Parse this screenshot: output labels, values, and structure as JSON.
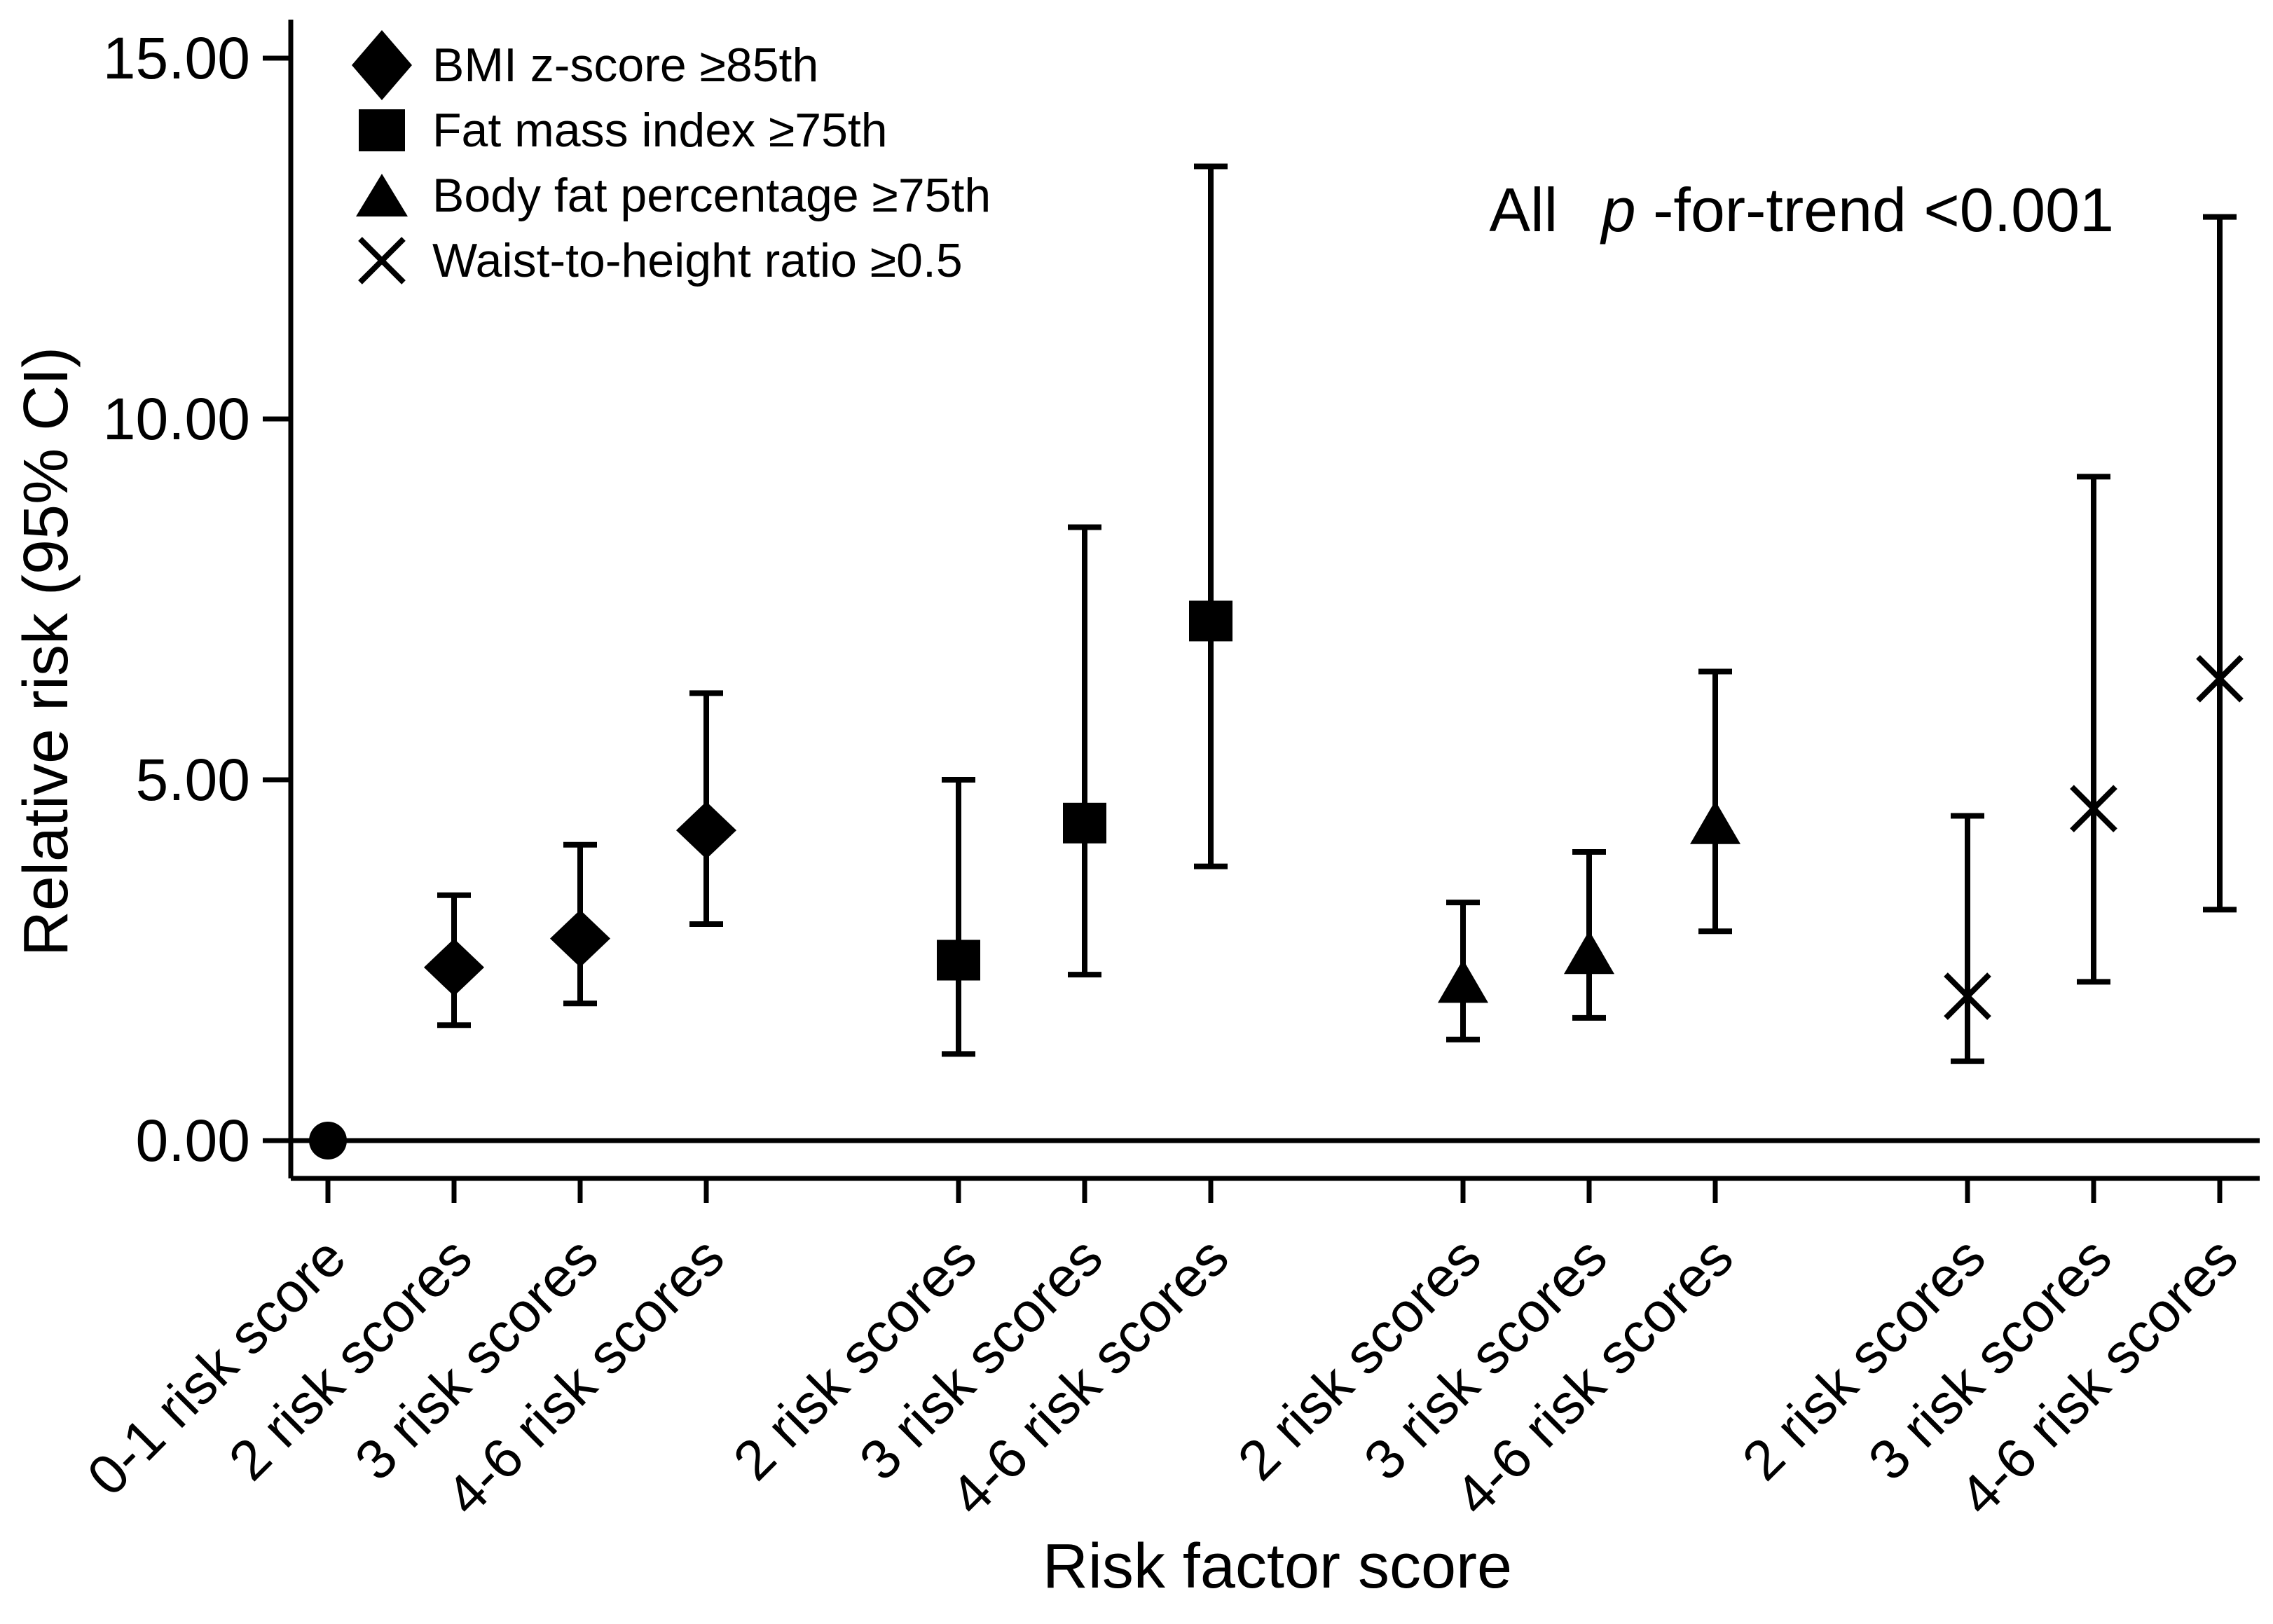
{
  "colors": {
    "foreground": "#000000",
    "background": "#ffffff"
  },
  "chart_data": {
    "type": "scatter",
    "subtype": "point-estimate-with-95ci-error-bars",
    "title": "",
    "xlabel": "Risk factor score",
    "ylabel": "Relative risk (95% CI)",
    "ylim": [
      0,
      15
    ],
    "grid": false,
    "legend_position": "top-left",
    "yticks": [
      {
        "value": 15,
        "label": "15.00"
      },
      {
        "value": 10,
        "label": "10.00"
      },
      {
        "value": 5,
        "label": "5.00"
      },
      {
        "value": 0,
        "label": "0.00"
      }
    ],
    "annotation": "All p-for-trend <0.001",
    "annotation_parts": {
      "pre": "All",
      "italic": "p",
      "post": "-for-trend <0.001"
    },
    "reference_line_y": 0,
    "reference_point": {
      "category": "0-1 risk score",
      "marker": "circle",
      "value": 0
    },
    "series": [
      {
        "name": "BMI z-score ≥85th",
        "marker": "diamond",
        "points": [
          {
            "category": "2 risk scores",
            "rr": 2.4,
            "ci_low": 1.6,
            "ci_high": 3.4
          },
          {
            "category": "3 risk scores",
            "rr": 2.8,
            "ci_low": 1.9,
            "ci_high": 4.1
          },
          {
            "category": "4-6 risk scores",
            "rr": 4.3,
            "ci_low": 3.0,
            "ci_high": 6.2
          }
        ]
      },
      {
        "name": "Fat mass index ≥75th",
        "marker": "square",
        "points": [
          {
            "category": "2 risk scores",
            "rr": 2.5,
            "ci_low": 1.2,
            "ci_high": 5.0
          },
          {
            "category": "3 risk scores",
            "rr": 4.4,
            "ci_low": 2.3,
            "ci_high": 8.5
          },
          {
            "category": "4-6 risk scores",
            "rr": 7.2,
            "ci_low": 3.8,
            "ci_high": 13.5
          }
        ]
      },
      {
        "name": "Body fat percentage ≥75th",
        "marker": "triangle",
        "points": [
          {
            "category": "2 risk scores",
            "rr": 2.2,
            "ci_low": 1.4,
            "ci_high": 3.3
          },
          {
            "category": "3 risk scores",
            "rr": 2.6,
            "ci_low": 1.7,
            "ci_high": 4.0
          },
          {
            "category": "4-6 risk scores",
            "rr": 4.4,
            "ci_low": 2.9,
            "ci_high": 6.5
          }
        ]
      },
      {
        "name": "Waist-to-height ratio ≥0.5",
        "marker": "x",
        "points": [
          {
            "category": "2 risk scores",
            "rr": 2.0,
            "ci_low": 1.1,
            "ci_high": 4.5
          },
          {
            "category": "3 risk scores",
            "rr": 4.6,
            "ci_low": 2.2,
            "ci_high": 9.2
          },
          {
            "category": "4-6 risk scores",
            "rr": 6.4,
            "ci_low": 3.2,
            "ci_high": 12.8
          }
        ]
      }
    ]
  }
}
